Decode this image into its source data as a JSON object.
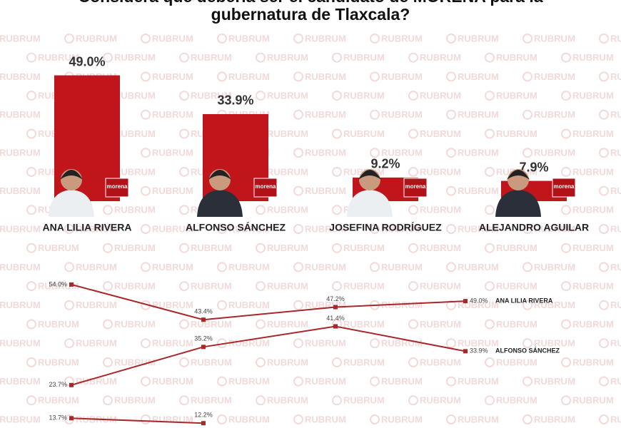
{
  "watermark": "RUBRUM",
  "logo_text": "morena",
  "chart_data": [
    {
      "type": "bar",
      "title": [
        "Considera que debería ser el candidato de MORENA para la",
        "gubernatura de Tlaxcala?"
      ],
      "categories": [
        "ANA LILIA RIVERA",
        "ALFONSO SÁNCHEZ",
        "JOSEFINA RODRÍGUEZ",
        "ALEJANDRO AGUILAR"
      ],
      "values": [
        49.0,
        33.9,
        9.2,
        7.9
      ],
      "value_labels": [
        "49.0%",
        "33.9%",
        "9.2%",
        "7.9%"
      ],
      "color": "#c0161b"
    },
    {
      "type": "line",
      "color": "#a8282a",
      "series": [
        {
          "name": "ANA LILIA RIVERA",
          "values": [
            54.0,
            43.4,
            47.2,
            49.0
          ],
          "value_labels": [
            "54.0%",
            "43.4%",
            "47.2%",
            "49.0%"
          ]
        },
        {
          "name": "ALFONSO SÁNCHEZ",
          "values": [
            23.7,
            35.2,
            41.4,
            33.9
          ],
          "value_labels": [
            "23.7%",
            "35.2%",
            "41.4%",
            "33.9%"
          ]
        },
        {
          "values": [
            13.7,
            12.2,
            null,
            null
          ],
          "value_labels": [
            "13.7%",
            "12.2%",
            null,
            null
          ]
        }
      ]
    }
  ]
}
